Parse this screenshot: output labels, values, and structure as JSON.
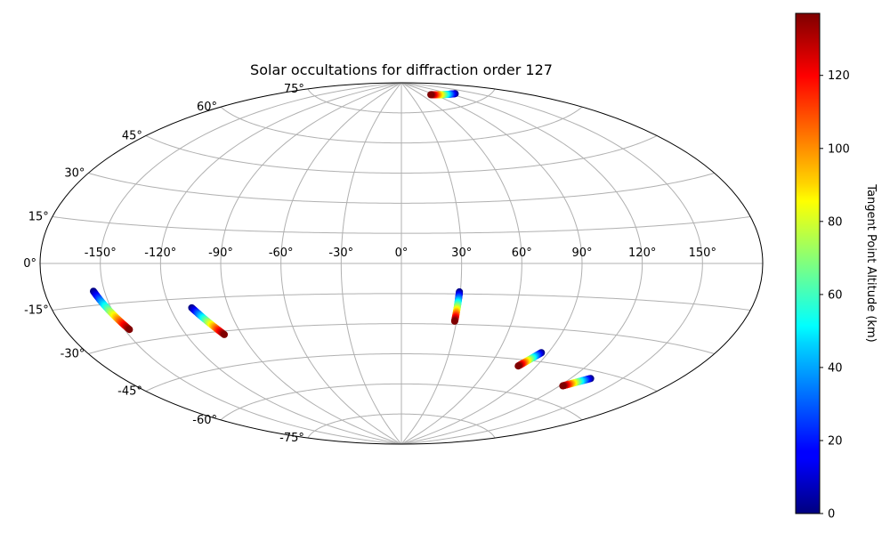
{
  "chart_data": {
    "type": "scatter",
    "projection": "aitoff",
    "title": "Solar occultations for diffraction order 127",
    "xlabel": "",
    "ylabel": "",
    "longitude_ticks": [
      "-150°",
      "-120°",
      "-90°",
      "-60°",
      "-30°",
      "0°",
      "30°",
      "60°",
      "90°",
      "120°",
      "150°"
    ],
    "latitude_ticks": [
      "75°",
      "60°",
      "45°",
      "30°",
      "15°",
      "0°",
      "-15°",
      "-30°",
      "-45°",
      "-60°",
      "-75°"
    ],
    "grid": true,
    "colorbar": {
      "label": "Tangent Point Altitude (km)",
      "colormap": "jet",
      "range": [
        0,
        137
      ],
      "ticks": [
        "0",
        "20",
        "40",
        "60",
        "80",
        "100",
        "120"
      ]
    },
    "series": [
      {
        "start": {
          "lon": -155.5,
          "lat": -10.0,
          "alt": 0
        },
        "end": {
          "lon": -147.5,
          "lat": -25.0,
          "alt": 137
        }
      },
      {
        "start": {
          "lon": -109.0,
          "lat": -19.0,
          "alt": 0
        },
        "end": {
          "lon": -99.5,
          "lat": -31.5,
          "alt": 137
        }
      },
      {
        "start": {
          "lon": 29.5,
          "lat": -14.0,
          "alt": 0
        },
        "end": {
          "lon": 29.0,
          "lat": -28.5,
          "alt": 137
        }
      },
      {
        "start": {
          "lon": 86.0,
          "lat": -41.0,
          "alt": 0
        },
        "end": {
          "lon": 78.5,
          "lat": -48.0,
          "alt": 137
        }
      },
      {
        "start": {
          "lon": 132.0,
          "lat": -48.0,
          "alt": 0
        },
        "end": {
          "lon": 122.0,
          "lat": -53.0,
          "alt": 137
        }
      },
      {
        "start": {
          "lon": 128.0,
          "lat": 80.0,
          "alt": 0
        },
        "end": {
          "lon": 83.0,
          "lat": 82.5,
          "alt": 137
        }
      }
    ]
  }
}
